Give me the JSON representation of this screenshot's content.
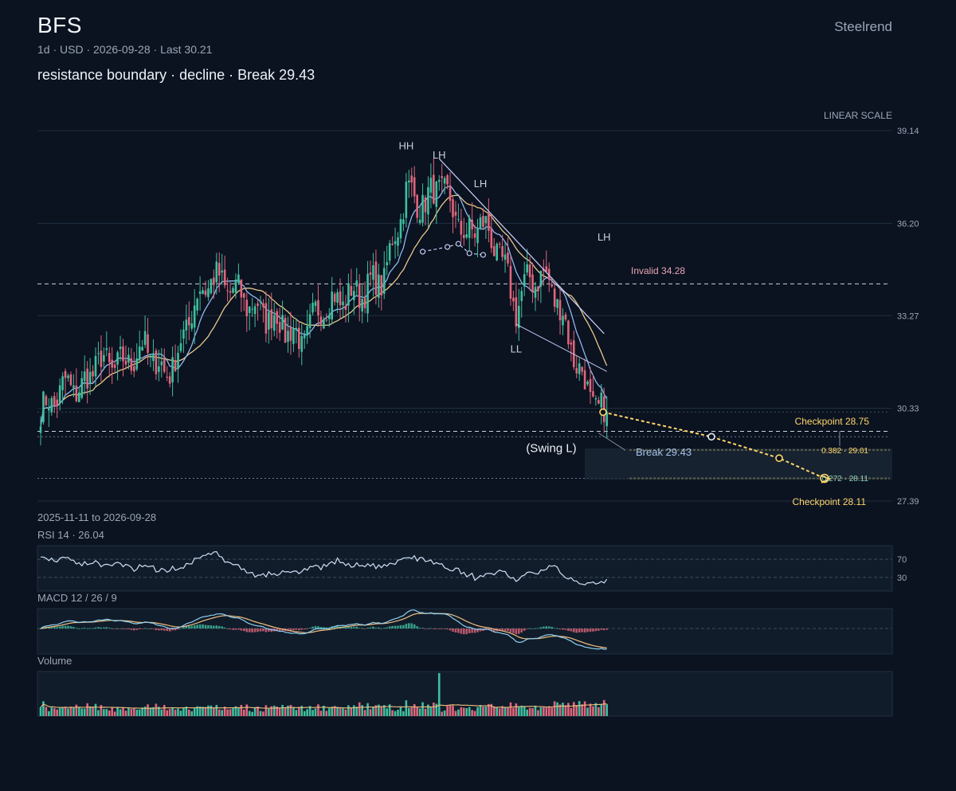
{
  "header": {
    "ticker": "BFS",
    "brand": "Steelrend",
    "meta": "1d · USD · 2026-09-28 · Last 30.21",
    "subtitle": "resistance boundary · decline · Break 29.43"
  },
  "colors": {
    "background": "#0b1220",
    "up": "#3fbf9f",
    "down": "#e0667c",
    "ma_fast": "#8fb8f0",
    "ma_slow": "#e8c98a",
    "projection": "#ffd76a",
    "invalid": "#e8a5b4",
    "break": "#a9c3e8",
    "rsi": "#cfe0f5",
    "macd": "#8fd0f0",
    "signal": "#f0c080"
  },
  "chart_data": {
    "type": "candlestick",
    "scale_label": "LINEAR SCALE",
    "date_range": "2025-11-11 to 2026-09-28",
    "y_ticks": [
      39.14,
      36.2,
      33.27,
      30.33,
      27.39
    ],
    "ylim": [
      27.39,
      39.14
    ],
    "last": 30.21,
    "levels": {
      "invalid": {
        "label": "Invalid 34.28",
        "value": 34.28
      },
      "break": {
        "label": "Break 29.43",
        "value": 29.43
      },
      "checkpoint_1": {
        "label": "Checkpoint 28.75",
        "value": 28.75
      },
      "checkpoint_2": {
        "label": "Checkpoint 28.11",
        "value": 28.11
      },
      "fib_382": {
        "label": "0.382 · 29.01",
        "value": 29.01
      },
      "fib_272": {
        "label": "0.272 · 28.11",
        "value": 28.11
      },
      "support": {
        "value": 29.6
      },
      "close_line": {
        "value": 30.21
      }
    },
    "annotations": [
      {
        "text": "HH",
        "bar": 133,
        "value": 38.55
      },
      {
        "text": "LH",
        "bar": 145,
        "value": 38.25
      },
      {
        "text": "LH",
        "bar": 160,
        "value": 37.35
      },
      {
        "text": "LH",
        "bar": 205,
        "value": 35.65
      },
      {
        "text": "LL",
        "bar": 173,
        "value": 32.1
      },
      {
        "text": "(Swing L)",
        "bar": 175,
        "value": 28.95
      }
    ],
    "ohlc_anchors": [
      [
        0,
        30.2
      ],
      [
        10,
        31.1
      ],
      [
        15,
        30.9
      ],
      [
        20,
        31.8
      ],
      [
        30,
        31.7
      ],
      [
        38,
        32.3
      ],
      [
        45,
        31.4
      ],
      [
        50,
        32.0
      ],
      [
        55,
        33.5
      ],
      [
        62,
        34.5
      ],
      [
        70,
        34.1
      ],
      [
        78,
        33.5
      ],
      [
        88,
        33.0
      ],
      [
        95,
        32.4
      ],
      [
        102,
        33.6
      ],
      [
        110,
        33.8
      ],
      [
        118,
        34.1
      ],
      [
        125,
        34.5
      ],
      [
        133,
        37.2
      ],
      [
        140,
        36.8
      ],
      [
        145,
        37.5
      ],
      [
        150,
        36.6
      ],
      [
        155,
        35.7
      ],
      [
        160,
        36.3
      ],
      [
        167,
        35.2
      ],
      [
        173,
        33.5
      ],
      [
        178,
        34.5
      ],
      [
        185,
        34.4
      ],
      [
        190,
        33.2
      ],
      [
        196,
        31.5
      ],
      [
        203,
        30.2
      ],
      [
        206,
        30.1
      ]
    ],
    "projection_path": [
      {
        "bar": 206,
        "value": 30.21
      },
      {
        "bar": 245,
        "value": 29.43
      },
      {
        "bar": 268,
        "value": 28.75
      },
      {
        "bar": 288,
        "value": 28.11
      }
    ],
    "rsi": {
      "label": "RSI 14 · 26.04",
      "period": 14,
      "last": 26.04,
      "levels": [
        70,
        30
      ]
    },
    "macd": {
      "label": "MACD 12 / 26 / 9",
      "fast": 12,
      "slow": 26,
      "signal": 9
    },
    "volume": {
      "label": "Volume"
    }
  }
}
